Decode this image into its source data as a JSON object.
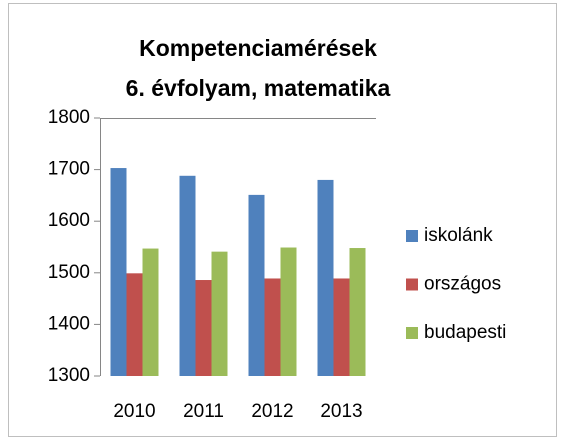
{
  "chart_data": {
    "type": "bar",
    "title": [
      "Kompetenciamérések",
      "6. évfolyam, matematika"
    ],
    "categories": [
      "2010",
      "2011",
      "2012",
      "2013"
    ],
    "series": [
      {
        "name": "iskolánk",
        "color": "#4f81bd",
        "values": [
          1703,
          1688,
          1651,
          1680
        ]
      },
      {
        "name": "országos",
        "color": "#c0504d",
        "values": [
          1499,
          1486,
          1489,
          1489
        ]
      },
      {
        "name": "budapesti",
        "color": "#9bbb59",
        "values": [
          1547,
          1541,
          1549,
          1548
        ]
      }
    ],
    "ylim": [
      1300,
      1800
    ],
    "yticks": [
      1300,
      1400,
      1500,
      1600,
      1700,
      1800
    ],
    "grid": false,
    "legend": "right"
  }
}
